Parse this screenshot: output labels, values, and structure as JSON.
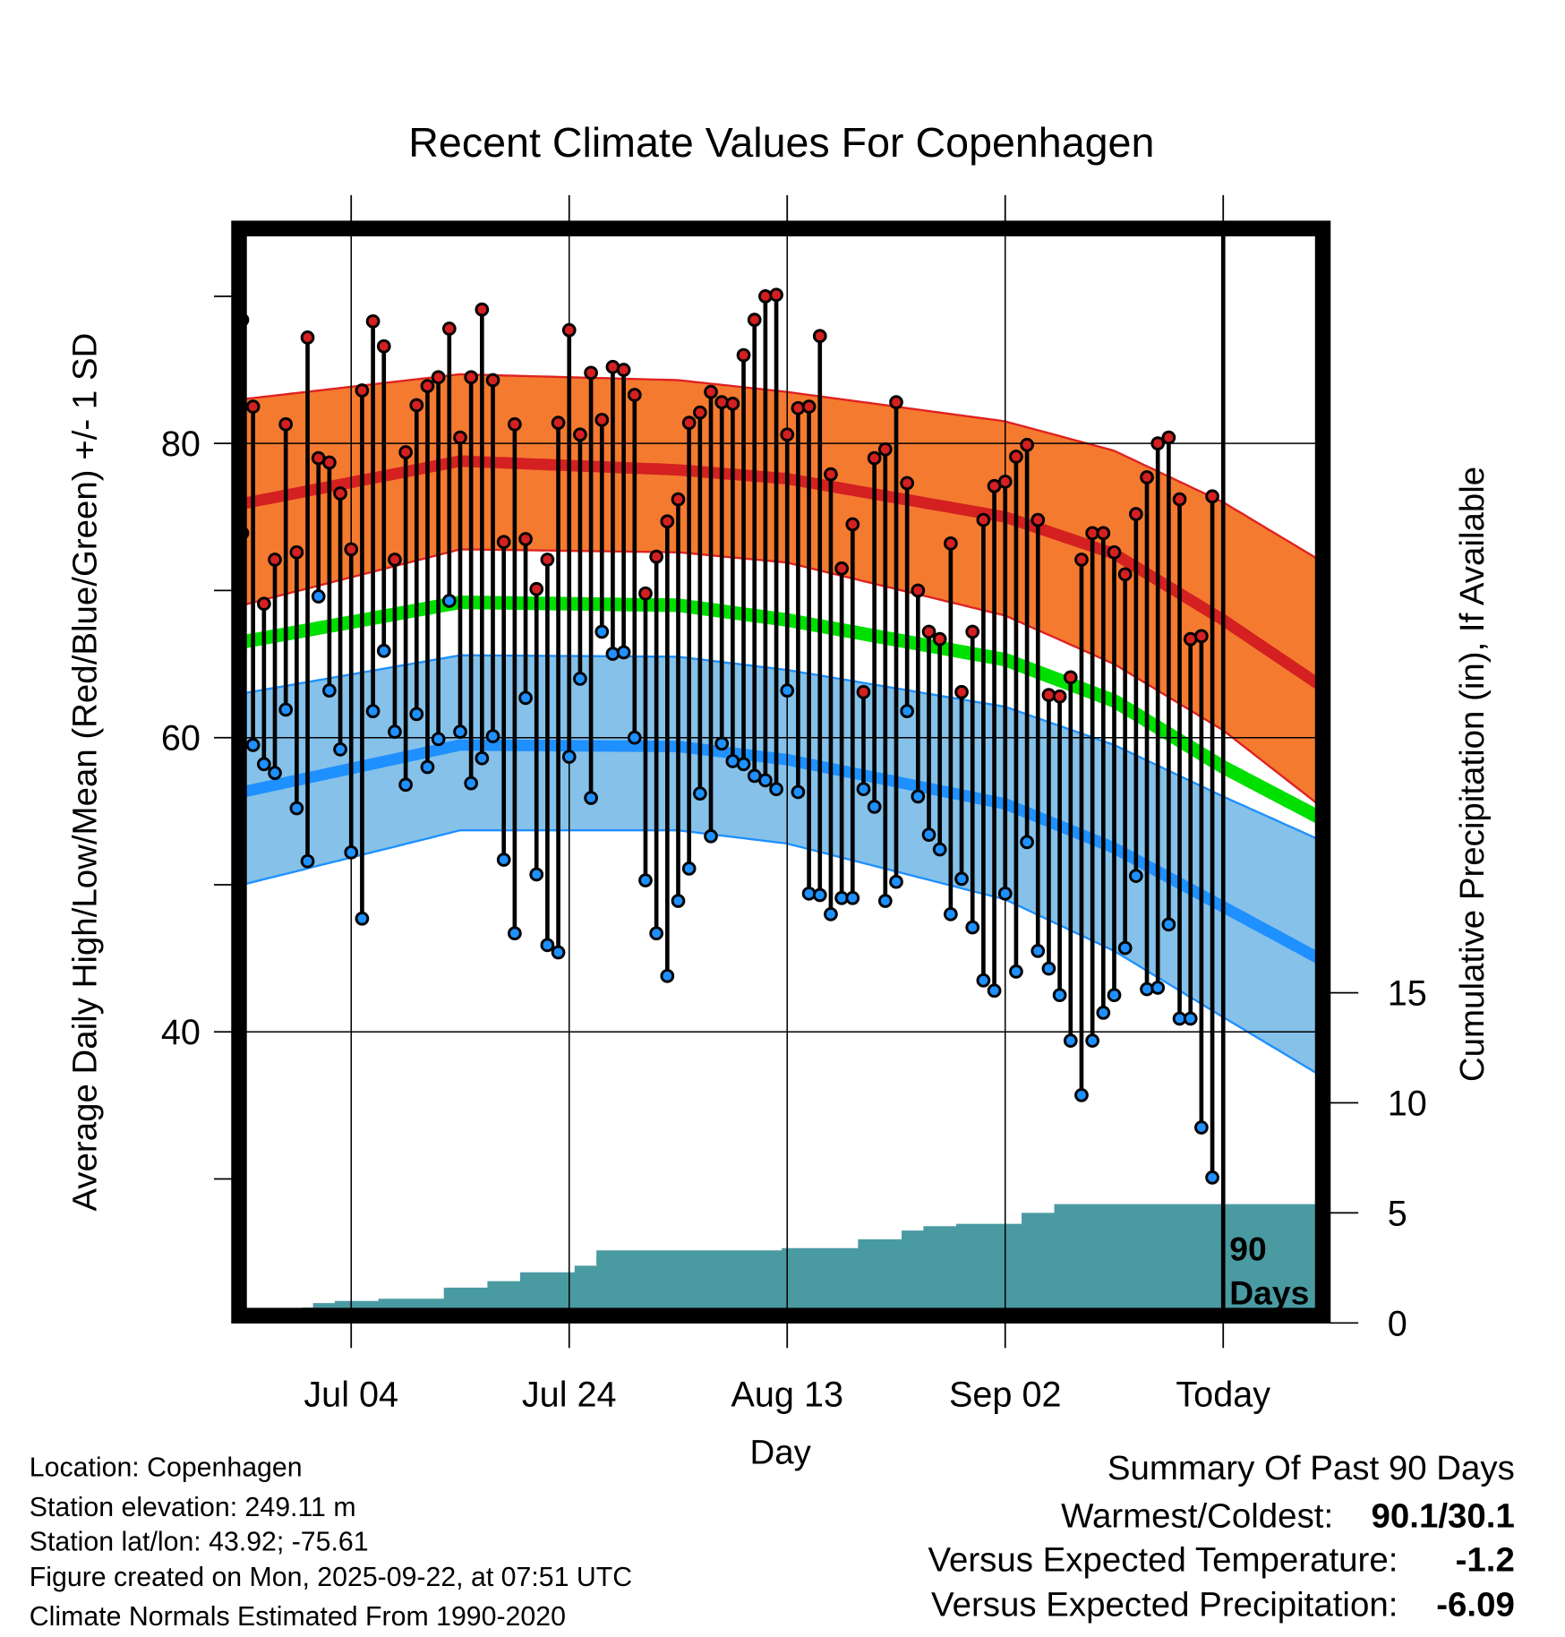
{
  "chart_data": {
    "type": "line",
    "title": "Recent Climate Values For Copenhagen",
    "xlabel": "Day",
    "ylabel": "Average Daily High/Low/Mean (Red/Blue/Green) +/- 1 SD",
    "y2label": "Cumulative Precipitation (in), If Available",
    "start_date": "2025-06-24",
    "ylim": [
      20.8,
      94.2
    ],
    "y2lim": [
      0,
      15
    ],
    "yticks": [
      "40",
      "60",
      "80"
    ],
    "y2ticks": [
      "0",
      "5",
      "10",
      "15"
    ],
    "xticks": [
      {
        "label": "Jul 04",
        "day": 10
      },
      {
        "label": "Jul 24",
        "day": 30
      },
      {
        "label": "Aug 13",
        "day": 50
      },
      {
        "label": "Sep 02",
        "day": 70
      },
      {
        "label": "Today",
        "day": 90
      }
    ],
    "today_label": [
      "90",
      "Days"
    ],
    "highs": [
      88.4,
      82.5,
      69.1,
      72.1,
      81.3,
      72.6,
      87.2,
      79.0,
      78.7,
      76.6,
      72.8,
      83.6,
      88.3,
      86.6,
      72.1,
      79.4,
      82.6,
      83.9,
      84.5,
      87.8,
      80.4,
      84.5,
      89.1,
      84.3,
      73.3,
      81.3,
      73.5,
      70.1,
      72.1,
      81.4,
      87.7,
      80.6,
      84.8,
      81.6,
      85.2,
      85.0,
      83.3,
      69.8,
      72.3,
      74.7,
      76.2,
      81.4,
      82.1,
      83.5,
      82.8,
      82.7,
      86.0,
      88.4,
      90.0,
      90.1,
      80.6,
      82.4,
      82.5,
      87.3,
      77.9,
      71.5,
      74.5,
      63.1,
      79.0,
      79.6,
      82.8,
      77.3,
      70.0,
      67.2,
      66.7,
      73.2,
      63.1,
      67.2,
      74.8,
      77.1,
      77.4,
      79.1,
      79.9,
      74.8,
      62.9,
      62.8,
      64.1,
      72.1,
      73.9,
      73.9,
      72.6,
      71.1,
      75.2,
      77.7,
      80.0,
      80.4,
      76.2,
      66.7,
      66.9,
      76.4
    ],
    "lows": [
      73.9,
      59.5,
      58.2,
      57.6,
      61.9,
      55.2,
      51.6,
      69.6,
      63.2,
      59.2,
      52.2,
      47.7,
      61.8,
      65.9,
      60.4,
      56.8,
      61.6,
      58.0,
      59.9,
      69.3,
      60.4,
      56.9,
      58.6,
      60.1,
      51.7,
      46.7,
      62.7,
      50.7,
      45.9,
      45.4,
      58.7,
      64.0,
      55.9,
      67.2,
      65.7,
      65.8,
      60.0,
      50.3,
      46.7,
      43.8,
      48.9,
      51.1,
      56.2,
      53.3,
      59.6,
      58.4,
      58.2,
      57.4,
      57.1,
      56.5,
      63.2,
      56.3,
      49.4,
      49.3,
      48.0,
      49.1,
      49.1,
      56.5,
      55.3,
      48.9,
      50.2,
      61.8,
      56.0,
      53.4,
      52.4,
      48.0,
      50.4,
      47.1,
      43.5,
      42.8,
      49.4,
      44.1,
      52.9,
      45.5,
      44.3,
      42.5,
      39.4,
      35.7,
      39.4,
      41.3,
      42.5,
      45.7,
      50.6,
      42.9,
      43.0,
      47.3,
      40.9,
      40.9,
      33.5,
      30.1
    ],
    "normals": {
      "days": [
        0,
        20,
        40,
        50,
        70,
        80,
        90,
        99
      ],
      "high_mean": [
        75.9,
        78.8,
        78.2,
        77.6,
        75.0,
        72.5,
        68.0,
        63.5
      ],
      "high_upper": [
        83.0,
        84.7,
        84.3,
        83.5,
        81.5,
        79.5,
        76.0,
        72.0
      ],
      "high_lower": [
        69.0,
        72.8,
        72.6,
        71.9,
        68.3,
        65.0,
        60.5,
        55.3
      ],
      "mean": [
        66.5,
        69.2,
        69.0,
        68.0,
        65.3,
        62.5,
        58.0,
        54.5
      ],
      "low_mean": [
        56.3,
        59.5,
        59.4,
        58.5,
        55.5,
        52.5,
        48.5,
        44.9
      ],
      "low_upper": [
        63.0,
        65.6,
        65.5,
        64.6,
        62.1,
        59.5,
        56.0,
        53.0
      ],
      "low_lower": [
        50.0,
        53.7,
        53.7,
        52.8,
        49.0,
        45.5,
        41.0,
        37.0
      ]
    },
    "precip_cumulative": [
      0,
      0,
      0,
      0,
      0,
      0,
      0.7,
      0.9,
      0.9,
      1.0,
      1.0,
      1.0,
      1.0,
      1.1,
      1.1,
      1.1,
      1.1,
      1.1,
      1.1,
      1.6,
      1.6,
      1.6,
      1.6,
      1.9,
      1.9,
      1.9,
      2.3,
      2.3,
      2.3,
      2.3,
      2.3,
      2.6,
      2.6,
      3.3,
      3.3,
      3.3,
      3.3,
      3.3,
      3.3,
      3.3,
      3.3,
      3.3,
      3.3,
      3.3,
      3.3,
      3.3,
      3.3,
      3.3,
      3.3,
      3.3,
      3.4,
      3.4,
      3.4,
      3.4,
      3.4,
      3.4,
      3.4,
      3.8,
      3.8,
      3.8,
      3.8,
      4.2,
      4.2,
      4.4,
      4.4,
      4.4,
      4.5,
      4.5,
      4.5,
      4.5,
      4.5,
      4.5,
      5.0,
      5.0,
      5.0,
      5.4,
      5.4,
      5.4,
      5.4,
      5.4,
      5.4,
      5.4,
      5.4,
      5.4,
      5.4,
      5.4,
      5.4,
      5.4,
      5.4,
      5.4
    ],
    "colors": {
      "high_band": "#f47a30",
      "high_line": "#d42020",
      "mean_line": "#00e000",
      "low_band": "#85c1e9",
      "low_line": "#1e90ff",
      "precip": "#4a9aa2",
      "high_dot": "#d42020",
      "low_dot": "#1e90ff"
    }
  },
  "info": {
    "location": "Location: Copenhagen",
    "elevation": "Station elevation: 249.11 m",
    "latlon": "Station lat/lon: 43.92; -75.61",
    "created": "Figure created on Mon, 2025-09-22, at 07:51 UTC",
    "normals": "Climate Normals Estimated From 1990-2020"
  },
  "summary": {
    "title": "Summary Of Past 90 Days",
    "warm_cold_label": "Warmest/Coldest:",
    "warm_cold_value": "90.1/30.1",
    "temp_label": "Versus Expected Temperature:",
    "temp_value": "-1.2",
    "precip_label": "Versus Expected Precipitation:",
    "precip_value": "-6.09",
    "temp_color": "#1e90ff",
    "precip_color": "#a0522d"
  }
}
